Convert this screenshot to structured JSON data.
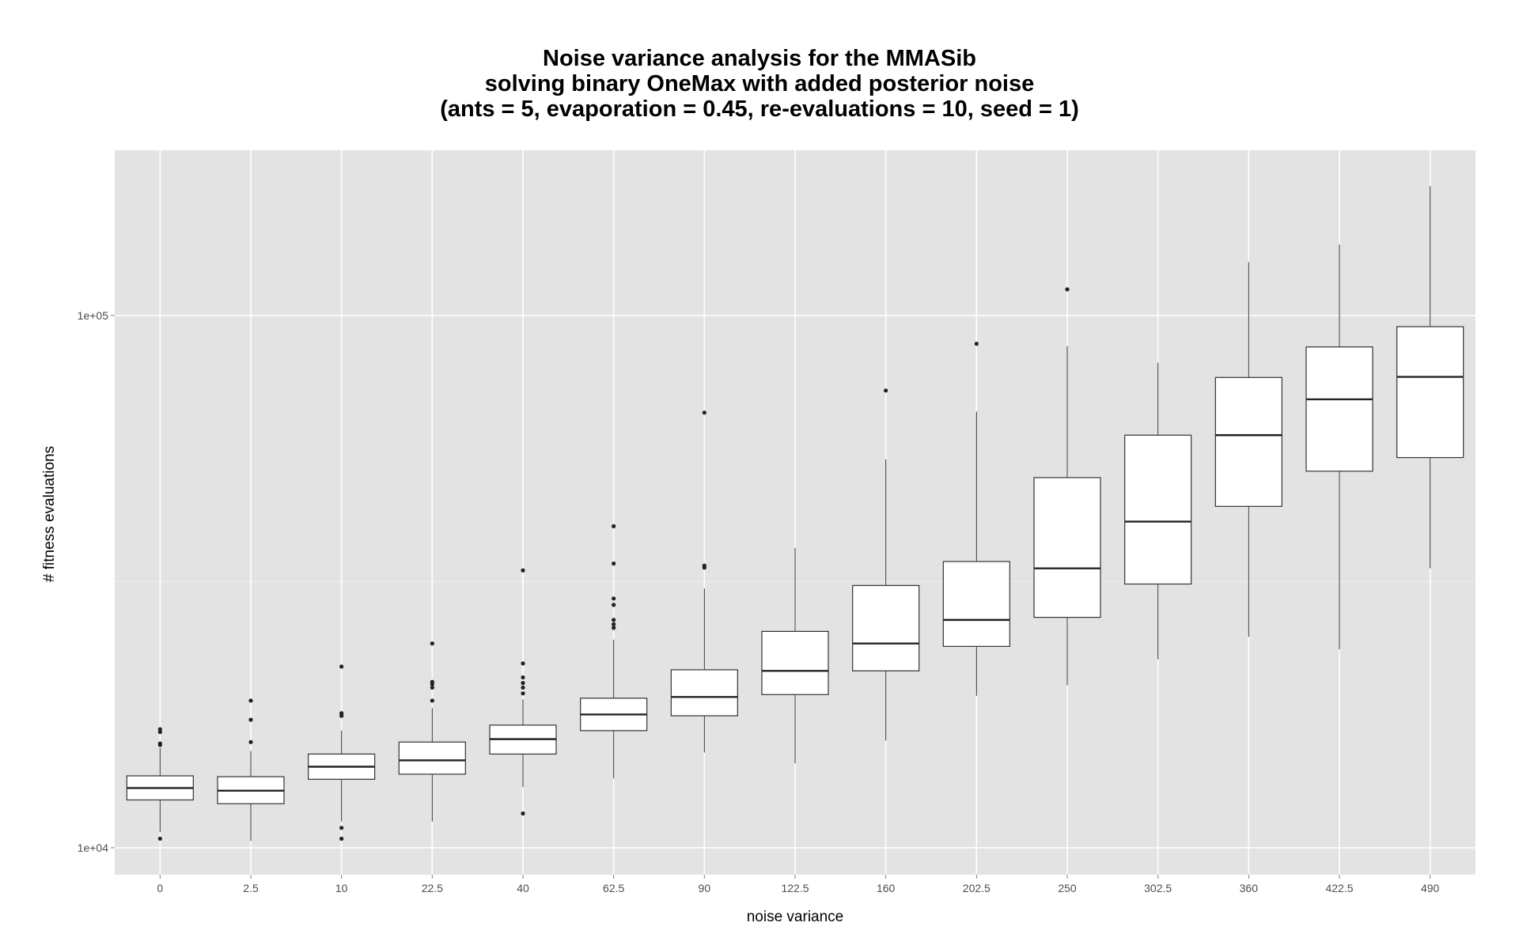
{
  "chart_data": {
    "type": "box",
    "title_lines": [
      "Noise variance analysis for the MMASib",
      "solving binary OneMax with added posterior noise",
      "(ants = 5, evaporation = 0.45, re-evaluations = 10, seed = 1)"
    ],
    "xlabel": "noise variance",
    "ylabel": "# fitness evaluations",
    "y_scale": "log10",
    "ylim": [
      9000,
      175000
    ],
    "y_ticks": [
      {
        "value": 10000,
        "label": "1e+04"
      },
      {
        "value": 100000,
        "label": "1e+05"
      }
    ],
    "y_minor_ticks": [
      31623
    ],
    "grid": true,
    "categories": [
      "0",
      "2.5",
      "10",
      "22.5",
      "40",
      "62.5",
      "90",
      "122.5",
      "160",
      "202.5",
      "250",
      "302.5",
      "360",
      "422.5",
      "490"
    ],
    "boxes": [
      {
        "q1": 12300,
        "median": 12950,
        "q3": 13650,
        "whisker_low": 10700,
        "whisker_high": 15400,
        "outliers": [
          10400,
          15600,
          15700,
          16500,
          16700
        ]
      },
      {
        "q1": 12100,
        "median": 12800,
        "q3": 13600,
        "whisker_low": 10300,
        "whisker_high": 15200,
        "outliers": [
          15800,
          17400,
          18900
        ]
      },
      {
        "q1": 13450,
        "median": 14200,
        "q3": 15000,
        "whisker_low": 11200,
        "whisker_high": 16600,
        "outliers": [
          10400,
          10900,
          17700,
          17900,
          21900
        ]
      },
      {
        "q1": 13750,
        "median": 14600,
        "q3": 15800,
        "whisker_low": 11200,
        "whisker_high": 18300,
        "outliers": [
          18900,
          20000,
          20300,
          20500,
          24200
        ]
      },
      {
        "q1": 15000,
        "median": 16000,
        "q3": 17000,
        "whisker_low": 13000,
        "whisker_high": 19000,
        "outliers": [
          11600,
          19500,
          20000,
          20400,
          20900,
          22200,
          33200
        ]
      },
      {
        "q1": 16600,
        "median": 17800,
        "q3": 19100,
        "whisker_low": 13500,
        "whisker_high": 24600,
        "outliers": [
          25900,
          26300,
          26800,
          28600,
          29400,
          34200,
          40200
        ]
      },
      {
        "q1": 17700,
        "median": 19200,
        "q3": 21600,
        "whisker_low": 15100,
        "whisker_high": 30700,
        "outliers": [
          33600,
          33900,
          65700
        ]
      },
      {
        "q1": 19400,
        "median": 21500,
        "q3": 25500,
        "whisker_low": 14400,
        "whisker_high": 36600,
        "outliers": []
      },
      {
        "q1": 21500,
        "median": 24200,
        "q3": 31100,
        "whisker_low": 15900,
        "whisker_high": 53700,
        "outliers": [
          72300
        ]
      },
      {
        "q1": 23900,
        "median": 26800,
        "q3": 34500,
        "whisker_low": 19300,
        "whisker_high": 66000,
        "outliers": [
          88500
        ]
      },
      {
        "q1": 27100,
        "median": 33500,
        "q3": 49600,
        "whisker_low": 20200,
        "whisker_high": 87600,
        "outliers": [
          112000
        ]
      },
      {
        "q1": 31300,
        "median": 41000,
        "q3": 59600,
        "whisker_low": 22600,
        "whisker_high": 81600,
        "outliers": []
      },
      {
        "q1": 43800,
        "median": 59600,
        "q3": 76500,
        "whisker_low": 24900,
        "whisker_high": 126000,
        "outliers": []
      },
      {
        "q1": 51000,
        "median": 69600,
        "q3": 87300,
        "whisker_low": 23600,
        "whisker_high": 136000,
        "outliers": []
      },
      {
        "q1": 54100,
        "median": 76700,
        "q3": 95300,
        "whisker_low": 33500,
        "whisker_high": 175000,
        "outliers": []
      }
    ],
    "colors": {
      "panel_background": "#e3e3e3",
      "grid_major": "#ffffff",
      "box_fill": "#ffffff",
      "box_stroke": "#333333",
      "tick_text": "#4d4d4d",
      "title_text": "#000000"
    }
  }
}
